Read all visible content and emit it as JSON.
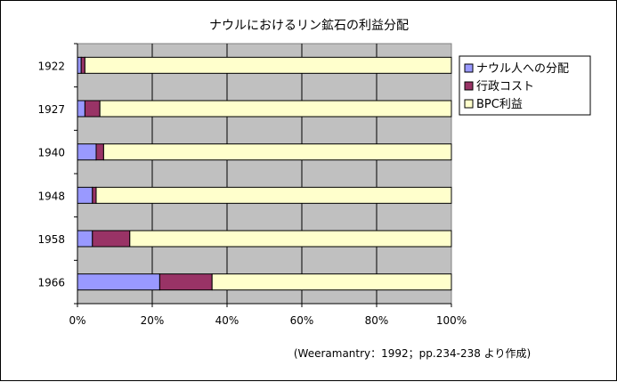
{
  "chart_data": {
    "type": "bar",
    "orientation": "horizontal",
    "stacked": "percent",
    "title": "ナウルにおけるリン鉱石の利益分配",
    "categories": [
      "1922",
      "1927",
      "1940",
      "1948",
      "1958",
      "1966"
    ],
    "series": [
      {
        "name": "ナウル人への分配",
        "color": "#9999FF",
        "values": [
          1,
          2,
          5,
          4,
          4,
          22
        ]
      },
      {
        "name": "行政コスト",
        "color": "#993366",
        "values": [
          1,
          4,
          2,
          1,
          10,
          14
        ]
      },
      {
        "name": "BPC利益",
        "color": "#FFFFCC",
        "values": [
          98,
          94,
          93,
          95,
          86,
          64
        ]
      }
    ],
    "xlim": [
      0,
      100
    ],
    "x_ticks": [
      "0%",
      "20%",
      "40%",
      "60%",
      "80%",
      "100%"
    ],
    "grid": true,
    "plot_background": "#C0C0C0",
    "legend_position": "right",
    "source_note": "(Weeramantry：1992；pp.234-238 より作成)"
  }
}
